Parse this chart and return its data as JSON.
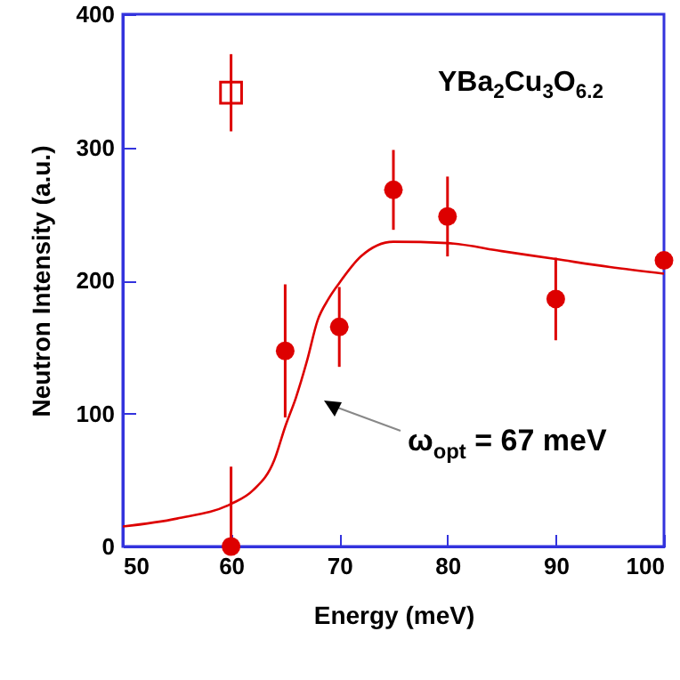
{
  "chart_data": {
    "type": "scatter",
    "xlabel": "Energy (meV)",
    "ylabel": "Neutron Intensity (a.u.)",
    "xlim": [
      50,
      100
    ],
    "xticks": [
      50,
      60,
      70,
      80,
      90,
      100
    ],
    "ylim": [
      0,
      400
    ],
    "yticks": [
      0,
      100,
      200,
      300,
      400
    ],
    "grid": false,
    "annotations": [
      "YBa$_{2}$Cu$_{3}$O$_{6.2}$",
      "ω$_{opt}$ = 67 meV"
    ],
    "series": [
      {
        "color": "#dd0000",
        "marker": "circle",
        "x": [
          60,
          65,
          70,
          75,
          80,
          90,
          100
        ],
        "values": [
          0,
          147,
          165,
          268,
          248,
          186,
          215
        ],
        "errors": [
          60,
          50,
          30,
          30,
          30,
          31,
          null
        ]
      },
      {
        "color": "#dd0000",
        "marker": "square",
        "x": [
          60
        ],
        "values": [
          341
        ],
        "errors": [
          29
        ]
      },
      {
        "type": "line",
        "color": "#dd0000",
        "marker": "none",
        "x": [
          50,
          55,
          60,
          62,
          64,
          65,
          66,
          67,
          68,
          69,
          70,
          72,
          75,
          80,
          85,
          90,
          95,
          100
        ],
        "values": [
          15,
          21,
          32,
          42,
          65,
          90,
          112,
          139,
          170,
          186,
          198,
          218,
          229,
          228,
          222,
          216,
          210,
          205
        ]
      }
    ]
  }
}
